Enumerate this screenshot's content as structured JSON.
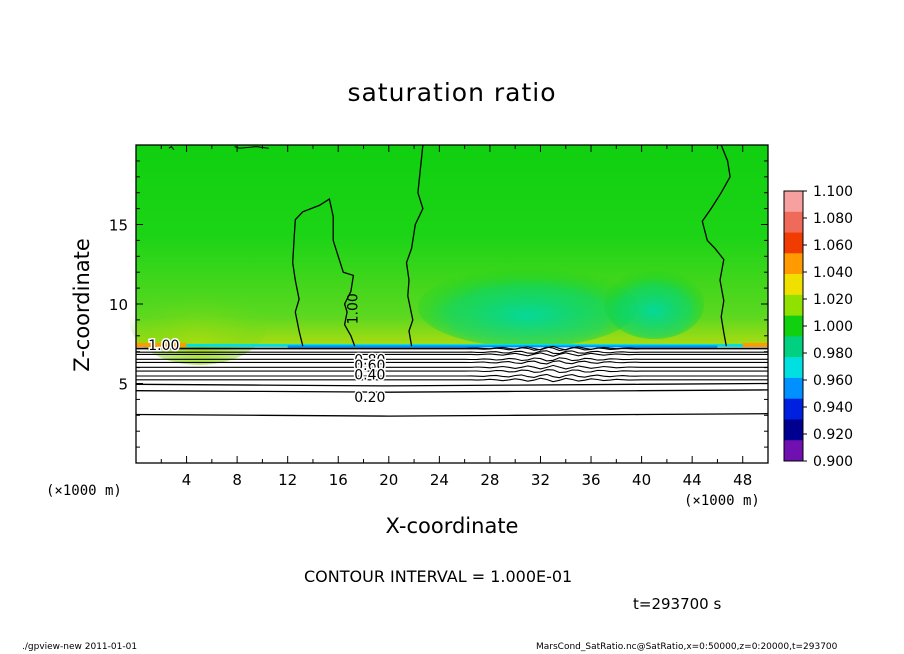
{
  "chart_data": {
    "type": "heatmap",
    "title": "saturation ratio",
    "xlabel": "X-coordinate",
    "ylabel": "Z-coordinate",
    "x_unit_label": "(×1000 m)",
    "xlim": [
      0,
      50
    ],
    "ylim": [
      0,
      20
    ],
    "x_ticks": [
      4,
      8,
      12,
      16,
      20,
      24,
      28,
      32,
      36,
      40,
      44,
      48
    ],
    "y_ticks": [
      5,
      10,
      15
    ],
    "colorbar": {
      "levels": [
        "1.100",
        "1.080",
        "1.060",
        "1.040",
        "1.020",
        "1.000",
        "0.980",
        "0.960",
        "0.940",
        "0.920",
        "0.900"
      ],
      "colors": [
        "#f7a0a0",
        "#f06a5a",
        "#f03c00",
        "#ff9a00",
        "#f0e000",
        "#90e000",
        "#10d010",
        "#00d080",
        "#00e0e0",
        "#0090ff",
        "#0020e0",
        "#000090",
        "#7010b0"
      ]
    },
    "contour_labels": [
      "1.00",
      "1.00",
      "0.80",
      "0.60",
      "0.40",
      "0.20"
    ],
    "contour_levels": [
      1.0,
      0.8,
      0.6,
      0.4,
      0.2
    ]
  },
  "annotations": {
    "contour_interval": "CONTOUR INTERVAL = 1.000E-01",
    "time": "t=293700 s"
  },
  "footer": {
    "left": "./gpview-new   2011-01-01",
    "right": "MarsCond_SatRatio.nc@SatRatio,x=0:50000,z=0:20000,t=293700"
  }
}
